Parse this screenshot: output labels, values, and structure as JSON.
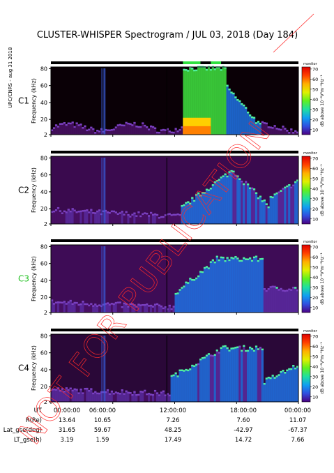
{
  "title": "CLUSTER-WHISPER Spectrogram / JUL 03, 2018 (Day 184)",
  "side_note": "UPC/CNRS - aug 31 2018",
  "watermark": "NOT FOR PUBLICATION",
  "colorbar": {
    "label": "dB above 10⁻⁸V²m⁻²Hz⁻¹",
    "ticks": [
      10,
      20,
      30,
      40,
      50,
      60,
      70
    ],
    "range": [
      5,
      72
    ],
    "header": "monitor",
    "colors": [
      "#4b0082",
      "#3050e0",
      "#10a0f0",
      "#20e0a0",
      "#60f020",
      "#e0f000",
      "#ffb000",
      "#ff4000",
      "#e00000"
    ]
  },
  "chart_data": [
    {
      "type": "heatmap",
      "panel": "C1",
      "ylabel": "Frequency (kHz)",
      "yticks": [
        2,
        20,
        40,
        60,
        80
      ],
      "ylim": [
        2,
        82
      ],
      "xlim": [
        "00:00:00",
        "24:00:00"
      ],
      "label_color": "#000000",
      "description": "quiet background, bursts near 05:00, saturated band 13:00-17:00, decaying emission 17:00-20:00"
    },
    {
      "type": "heatmap",
      "panel": "C2",
      "ylabel": "Frequency (kHz)",
      "yticks": [
        2,
        20,
        40,
        60,
        80
      ],
      "ylim": [
        2,
        82
      ],
      "xlim": [
        "00:00:00",
        "24:00:00"
      ],
      "label_color": "#000000"
    },
    {
      "type": "heatmap",
      "panel": "C3",
      "ylabel": "Frequency (kHz)",
      "yticks": [
        2,
        20,
        40,
        60,
        80
      ],
      "ylim": [
        2,
        82
      ],
      "xlim": [
        "00:00:00",
        "24:00:00"
      ],
      "label_color": "#20c020"
    },
    {
      "type": "heatmap",
      "panel": "C4",
      "ylabel": "Frequency (kHz)",
      "yticks": [
        2,
        20,
        40,
        60,
        80
      ],
      "ylim": [
        2,
        82
      ],
      "xlim": [
        "00:00:00",
        "24:00:00"
      ],
      "label_color": "#000000"
    }
  ],
  "orbit_table": {
    "rows": [
      {
        "label": "UT",
        "values": [
          "00:00:00",
          "06:00:00",
          "12:00:00",
          "18:00:00",
          "00:00:00"
        ]
      },
      {
        "label": "R(Re)",
        "values": [
          "13.64",
          "10.65",
          "7.26",
          "7.60",
          "11.07"
        ]
      },
      {
        "label": "Lat_gse(deg)",
        "values": [
          "31.65",
          "59.67",
          "48.25",
          "-42.97",
          "-67.37"
        ]
      },
      {
        "label": "LT_gse(h)",
        "values": [
          "3.19",
          "1.59",
          "17.49",
          "14.72",
          "7.66"
        ]
      }
    ]
  }
}
